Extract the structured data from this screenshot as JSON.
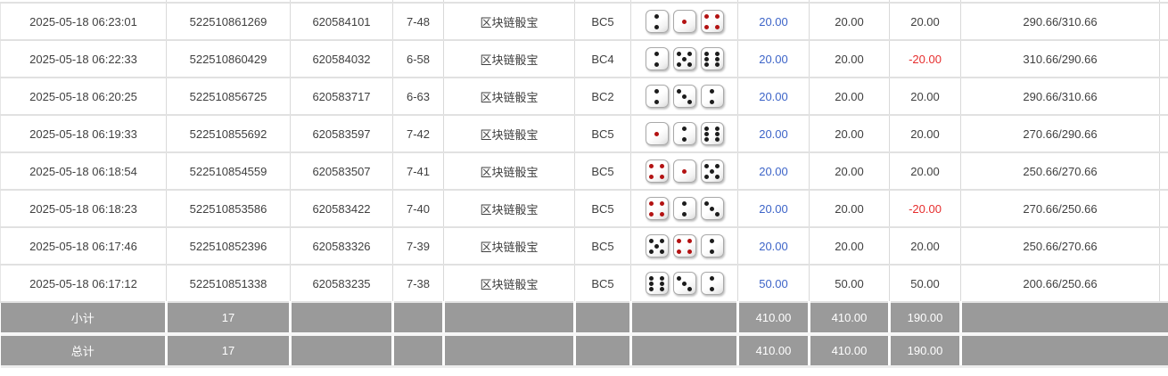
{
  "colors": {
    "link_blue": "#3d64c8",
    "negative_red": "#e62e2e",
    "summary_bg": "#9a9a9a",
    "summary_text": "#ffffff",
    "row_border": "#e1e1e1"
  },
  "game_table": {
    "dice_red_values": [
      1,
      4
    ],
    "rows": [
      {
        "time": "2025-05-18 06:23:01",
        "bet_id": "522510861269",
        "draw_id": "620584101",
        "round": "7-48",
        "game": "区块链骰宝",
        "bet_type": "BC5",
        "dice": [
          2,
          1,
          4
        ],
        "bet_amount": "20.00",
        "valid_amount": "20.00",
        "win_loss": "20.00",
        "balance": "290.66/310.66"
      },
      {
        "time": "2025-05-18 06:22:33",
        "bet_id": "522510860429",
        "draw_id": "620584032",
        "round": "6-58",
        "game": "区块链骰宝",
        "bet_type": "BC4",
        "dice": [
          2,
          5,
          6
        ],
        "bet_amount": "20.00",
        "valid_amount": "20.00",
        "win_loss": "-20.00",
        "balance": "310.66/290.66"
      },
      {
        "time": "2025-05-18 06:20:25",
        "bet_id": "522510856725",
        "draw_id": "620583717",
        "round": "6-63",
        "game": "区块链骰宝",
        "bet_type": "BC2",
        "dice": [
          2,
          3,
          2
        ],
        "bet_amount": "20.00",
        "valid_amount": "20.00",
        "win_loss": "20.00",
        "balance": "290.66/310.66"
      },
      {
        "time": "2025-05-18 06:19:33",
        "bet_id": "522510855692",
        "draw_id": "620583597",
        "round": "7-42",
        "game": "区块链骰宝",
        "bet_type": "BC5",
        "dice": [
          1,
          2,
          6
        ],
        "bet_amount": "20.00",
        "valid_amount": "20.00",
        "win_loss": "20.00",
        "balance": "270.66/290.66"
      },
      {
        "time": "2025-05-18 06:18:54",
        "bet_id": "522510854559",
        "draw_id": "620583507",
        "round": "7-41",
        "game": "区块链骰宝",
        "bet_type": "BC5",
        "dice": [
          4,
          1,
          5
        ],
        "bet_amount": "20.00",
        "valid_amount": "20.00",
        "win_loss": "20.00",
        "balance": "250.66/270.66"
      },
      {
        "time": "2025-05-18 06:18:23",
        "bet_id": "522510853586",
        "draw_id": "620583422",
        "round": "7-40",
        "game": "区块链骰宝",
        "bet_type": "BC5",
        "dice": [
          4,
          2,
          3
        ],
        "bet_amount": "20.00",
        "valid_amount": "20.00",
        "win_loss": "-20.00",
        "balance": "270.66/250.66"
      },
      {
        "time": "2025-05-18 06:17:46",
        "bet_id": "522510852396",
        "draw_id": "620583326",
        "round": "7-39",
        "game": "区块链骰宝",
        "bet_type": "BC5",
        "dice": [
          5,
          4,
          2
        ],
        "bet_amount": "20.00",
        "valid_amount": "20.00",
        "win_loss": "20.00",
        "balance": "250.66/270.66"
      },
      {
        "time": "2025-05-18 06:17:12",
        "bet_id": "522510851338",
        "draw_id": "620583235",
        "round": "7-38",
        "game": "区块链骰宝",
        "bet_type": "BC5",
        "dice": [
          6,
          3,
          2
        ],
        "bet_amount": "50.00",
        "valid_amount": "50.00",
        "win_loss": "50.00",
        "balance": "200.66/250.66"
      }
    ],
    "subtotal": {
      "label": "小计",
      "count": "17",
      "bet_total": "410.00",
      "valid_total": "410.00",
      "win_loss_total": "190.00"
    },
    "total": {
      "label": "总计",
      "count": "17",
      "bet_total": "410.00",
      "valid_total": "410.00",
      "win_loss_total": "190.00"
    }
  }
}
